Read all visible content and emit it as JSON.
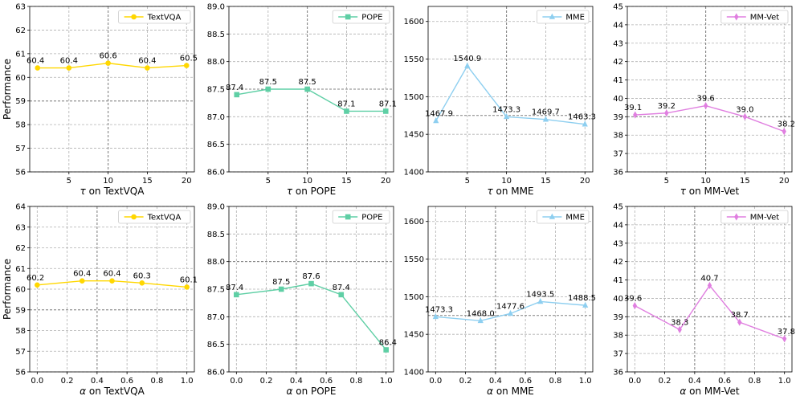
{
  "figure": {
    "ylabel": "Performance",
    "colors": {
      "TextVQA": "#FFD700",
      "POPE": "#5FCFA5",
      "MME": "#8ECFF0",
      "MM-Vet": "#E07FE0"
    }
  },
  "chart_data": [
    {
      "type": "line",
      "series_name": "TextVQA",
      "marker": "circle",
      "x": [
        1,
        5,
        10,
        15,
        20
      ],
      "y": [
        60.4,
        60.4,
        60.6,
        60.4,
        60.5
      ],
      "labels": [
        "60.4",
        "60.4",
        "60.6",
        "60.4",
        "60.5"
      ],
      "xlabel_symbol": "τ",
      "xlabel_text": " on TextVQA",
      "xticks": [
        5,
        10,
        15,
        20
      ],
      "xtick_labels": [
        "5",
        "10",
        "15",
        "20"
      ],
      "xlim": [
        0,
        21
      ],
      "ylim": [
        56,
        63
      ],
      "yticks": [
        56,
        57,
        58,
        59,
        60,
        61,
        62,
        63
      ],
      "ytick_labels": [
        "56",
        "57",
        "58",
        "59",
        "60",
        "61",
        "62",
        "63"
      ],
      "vline": 10,
      "hline": 59,
      "show_ylabel": true
    },
    {
      "type": "line",
      "series_name": "POPE",
      "marker": "square",
      "x": [
        1,
        5,
        10,
        15,
        20
      ],
      "y": [
        87.4,
        87.5,
        87.5,
        87.1,
        87.1
      ],
      "labels": [
        "87.4",
        "87.5",
        "87.5",
        "87.1",
        "87.1"
      ],
      "xlabel_symbol": "τ",
      "xlabel_text": " on POPE",
      "xticks": [
        5,
        10,
        15,
        20
      ],
      "xtick_labels": [
        "5",
        "10",
        "15",
        "20"
      ],
      "xlim": [
        0,
        21
      ],
      "ylim": [
        86,
        89
      ],
      "yticks": [
        86,
        86.5,
        87,
        87.5,
        88,
        88.5,
        89
      ],
      "ytick_labels": [
        "86.0",
        "86.5",
        "87.0",
        "87.5",
        "88.0",
        "88.5",
        "89.0"
      ],
      "vline": 10,
      "hline": 87.5,
      "show_ylabel": false
    },
    {
      "type": "line",
      "series_name": "MME",
      "marker": "triangle",
      "x": [
        1,
        5,
        10,
        15,
        20
      ],
      "y": [
        1467.9,
        1540.9,
        1473.3,
        1469.7,
        1463.3
      ],
      "labels": [
        "1467.9",
        "1540.9",
        "1473.3",
        "1469.7",
        "1463.3"
      ],
      "xlabel_symbol": "τ",
      "xlabel_text": " on MME",
      "xticks": [
        5,
        10,
        15,
        20
      ],
      "xtick_labels": [
        "5",
        "10",
        "15",
        "20"
      ],
      "xlim": [
        0,
        21
      ],
      "ylim": [
        1400,
        1620
      ],
      "yticks": [
        1400,
        1450,
        1500,
        1550,
        1600
      ],
      "ytick_labels": [
        "1400",
        "1450",
        "1500",
        "1550",
        "1600"
      ],
      "vline": 10,
      "hline": 1475,
      "show_ylabel": false
    },
    {
      "type": "line",
      "series_name": "MM-Vet",
      "marker": "diamond",
      "x": [
        1,
        5,
        10,
        15,
        20
      ],
      "y": [
        39.1,
        39.2,
        39.6,
        39.0,
        38.2
      ],
      "labels": [
        "39.1",
        "39.2",
        "39.6",
        "39.0",
        "38.2"
      ],
      "xlabel_symbol": "τ",
      "xlabel_text": " on MM-Vet",
      "xticks": [
        5,
        10,
        15,
        20
      ],
      "xtick_labels": [
        "5",
        "10",
        "15",
        "20"
      ],
      "xlim": [
        0,
        21
      ],
      "ylim": [
        36,
        45
      ],
      "yticks": [
        36,
        37,
        38,
        39,
        40,
        41,
        42,
        43,
        44,
        45
      ],
      "ytick_labels": [
        "36",
        "37",
        "38",
        "39",
        "40",
        "41",
        "42",
        "43",
        "44",
        "45"
      ],
      "vline": 10,
      "hline": 39,
      "show_ylabel": false
    },
    {
      "type": "line",
      "series_name": "TextVQA",
      "marker": "circle",
      "x": [
        0,
        0.3,
        0.5,
        0.7,
        1.0
      ],
      "y": [
        60.2,
        60.4,
        60.4,
        60.3,
        60.1
      ],
      "labels": [
        "60.2",
        "60.4",
        "60.4",
        "60.3",
        "60.1"
      ],
      "xlabel_symbol": "α",
      "xlabel_text": " on TextVQA",
      "xticks": [
        0,
        0.2,
        0.4,
        0.6,
        0.8,
        1.0
      ],
      "xtick_labels": [
        "0.0",
        "0.2",
        "0.4",
        "0.6",
        "0.8",
        "1.0"
      ],
      "xlim": [
        -0.05,
        1.05
      ],
      "ylim": [
        56,
        64
      ],
      "yticks": [
        56,
        57,
        58,
        59,
        60,
        61,
        62,
        63,
        64
      ],
      "ytick_labels": [
        "56",
        "57",
        "58",
        "59",
        "60",
        "61",
        "62",
        "63",
        "64"
      ],
      "vline": 0.4,
      "hline": 59,
      "show_ylabel": true
    },
    {
      "type": "line",
      "series_name": "POPE",
      "marker": "square",
      "x": [
        0,
        0.3,
        0.5,
        0.7,
        1.0
      ],
      "y": [
        87.4,
        87.5,
        87.6,
        87.4,
        86.4
      ],
      "labels": [
        "87.4",
        "87.5",
        "87.6",
        "87.4",
        "86.4"
      ],
      "xlabel_symbol": "α",
      "xlabel_text": " on POPE",
      "xticks": [
        0,
        0.2,
        0.4,
        0.6,
        0.8,
        1.0
      ],
      "xtick_labels": [
        "0.0",
        "0.2",
        "0.4",
        "0.6",
        "0.8",
        "1.0"
      ],
      "xlim": [
        -0.05,
        1.05
      ],
      "ylim": [
        86,
        89
      ],
      "yticks": [
        86,
        86.5,
        87,
        87.5,
        88,
        88.5,
        89
      ],
      "ytick_labels": [
        "86.0",
        "86.5",
        "87.0",
        "87.5",
        "88.0",
        "88.5",
        "89.0"
      ],
      "vline": 0.4,
      "hline": 88,
      "show_ylabel": false
    },
    {
      "type": "line",
      "series_name": "MME",
      "marker": "triangle",
      "x": [
        0,
        0.3,
        0.5,
        0.7,
        1.0
      ],
      "y": [
        1473.3,
        1468.0,
        1477.6,
        1493.5,
        1488.5
      ],
      "labels": [
        "1473.3",
        "1468.0",
        "1477.6",
        "1493.5",
        "1488.5"
      ],
      "xlabel_symbol": "α",
      "xlabel_text": " on MME",
      "xticks": [
        0,
        0.2,
        0.4,
        0.6,
        0.8,
        1.0
      ],
      "xtick_labels": [
        "0.0",
        "0.2",
        "0.4",
        "0.6",
        "0.8",
        "1.0"
      ],
      "xlim": [
        -0.05,
        1.05
      ],
      "ylim": [
        1400,
        1620
      ],
      "yticks": [
        1400,
        1450,
        1500,
        1550,
        1600
      ],
      "ytick_labels": [
        "1400",
        "1450",
        "1500",
        "1550",
        "1600"
      ],
      "vline": 0.4,
      "hline": 1475,
      "show_ylabel": false
    },
    {
      "type": "line",
      "series_name": "MM-Vet",
      "marker": "diamond",
      "x": [
        0,
        0.3,
        0.5,
        0.7,
        1.0
      ],
      "y": [
        39.6,
        38.3,
        40.7,
        38.7,
        37.8
      ],
      "labels": [
        "39.6",
        "38.3",
        "40.7",
        "38.7",
        "37.8"
      ],
      "xlabel_symbol": "α",
      "xlabel_text": " on MM-Vet",
      "xticks": [
        0,
        0.2,
        0.4,
        0.6,
        0.8,
        1.0
      ],
      "xtick_labels": [
        "0.0",
        "0.2",
        "0.4",
        "0.6",
        "0.8",
        "1.0"
      ],
      "xlim": [
        -0.05,
        1.05
      ],
      "ylim": [
        36,
        45
      ],
      "yticks": [
        36,
        37,
        38,
        39,
        40,
        41,
        42,
        43,
        44,
        45
      ],
      "ytick_labels": [
        "36",
        "37",
        "38",
        "39",
        "40",
        "41",
        "42",
        "43",
        "44",
        "45"
      ],
      "vline": 0.4,
      "hline": 39,
      "show_ylabel": false
    }
  ]
}
